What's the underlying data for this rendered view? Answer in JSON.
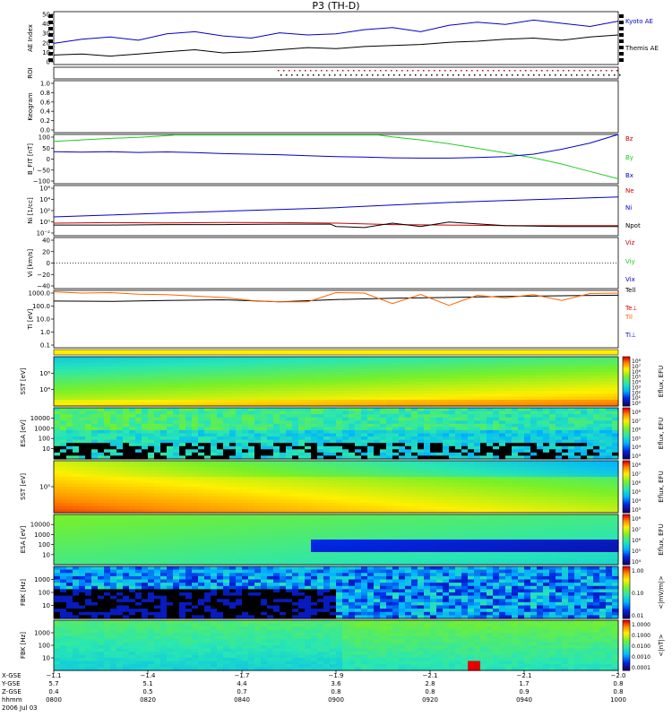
{
  "title": "P3 (TH-D)",
  "colors": {
    "black": "#000000",
    "blue": "#0000cc",
    "green": "#22cc22",
    "red": "#cc0000",
    "orange": "#ff6600",
    "dark": "#000033"
  },
  "chart_data": [
    {
      "type": "line",
      "name": "ae",
      "ylabel": "AE Index",
      "ylim": [
        0,
        50
      ],
      "ticks": [
        "50",
        "40",
        "30",
        "20",
        "10",
        "0"
      ],
      "series": [
        {
          "name": "Kyoto AE",
          "color": "blue",
          "x": [
            0,
            1,
            2,
            3,
            4,
            5,
            6,
            7,
            8,
            9,
            10,
            11,
            12,
            13,
            14,
            15,
            16,
            17,
            18,
            19,
            20
          ],
          "values": [
            20,
            24,
            26,
            23,
            29,
            31,
            27,
            25,
            30,
            28,
            29,
            33,
            35,
            31,
            37,
            40,
            38,
            42,
            39,
            36,
            41
          ]
        },
        {
          "name": "Themis AE",
          "color": "black",
          "x": [
            0,
            1,
            2,
            3,
            4,
            5,
            6,
            7,
            8,
            9,
            10,
            11,
            12,
            13,
            14,
            15,
            16,
            17,
            18,
            19,
            20
          ],
          "values": [
            9,
            10,
            8,
            10,
            12,
            14,
            11,
            12,
            14,
            16,
            15,
            17,
            18,
            19,
            21,
            22,
            24,
            25,
            23,
            26,
            28
          ]
        }
      ]
    },
    {
      "type": "roi",
      "name": "roi",
      "ylabel": "ROI"
    },
    {
      "type": "blank",
      "name": "keogram",
      "ylabel": "Keogram",
      "ylim": [
        0,
        1.0
      ],
      "ticks": [
        "1.0",
        "0.8",
        "0.6",
        "0.4",
        "0.2",
        "0.0"
      ]
    },
    {
      "type": "line",
      "name": "bfield",
      "ylabel": "B_FIT [nT]",
      "ylim": [
        -100,
        100
      ],
      "ticks": [
        "100",
        "50",
        "0",
        "−50",
        "−100"
      ],
      "series": [
        {
          "name": "Bz",
          "color": "red",
          "x": [],
          "values": []
        },
        {
          "name": "By",
          "color": "green",
          "x": [
            0,
            1,
            2,
            3,
            4,
            4.3,
            11.5,
            12,
            13,
            14,
            15,
            16,
            17,
            18,
            19,
            20
          ],
          "values": [
            72,
            78,
            84,
            88,
            95,
            98,
            98,
            90,
            78,
            62,
            44,
            25,
            5,
            -20,
            -50,
            -80
          ]
        },
        {
          "name": "Bx",
          "color": "blue",
          "x": [
            0,
            1,
            2,
            3,
            4,
            5,
            6,
            7,
            8,
            9,
            10,
            11,
            12,
            13,
            14,
            15,
            16,
            17,
            18,
            19,
            20
          ],
          "values": [
            30,
            28,
            30,
            27,
            29,
            26,
            22,
            20,
            18,
            14,
            10,
            8,
            5,
            4,
            4,
            6,
            10,
            20,
            40,
            65,
            100
          ]
        }
      ]
    },
    {
      "type": "line",
      "name": "density",
      "ylabel": "Ni [1/cc]",
      "log": true,
      "ylim": [
        0.01,
        1000000
      ],
      "ticks": [
        "10⁶",
        "10⁴",
        "10²",
        "10⁰",
        "10⁻²"
      ],
      "series": [
        {
          "name": "Ne",
          "color": "red",
          "x": [
            0,
            2,
            4,
            6,
            8,
            10,
            12,
            14,
            16,
            18,
            20
          ],
          "values": [
            1,
            1.2,
            1.1,
            1.3,
            1.2,
            1,
            0.6,
            0.5,
            0.4,
            0.4,
            0.4
          ]
        },
        {
          "name": "Ni",
          "color": "blue",
          "x": [
            0,
            2,
            4,
            6,
            8,
            10,
            12,
            14,
            16,
            18,
            20
          ],
          "values": [
            10,
            20,
            40,
            80,
            150,
            300,
            800,
            2000,
            4000,
            8000,
            15000
          ]
        },
        {
          "name": "Npot",
          "color": "black",
          "x": [
            0,
            2,
            4,
            6,
            8,
            9.8,
            10,
            11,
            12,
            13,
            14,
            16,
            18,
            20
          ],
          "values": [
            0.5,
            0.5,
            0.6,
            0.6,
            0.7,
            0.7,
            0.3,
            0.2,
            1,
            0.3,
            1.5,
            0.4,
            0.3,
            0.3
          ]
        }
      ]
    },
    {
      "type": "line",
      "name": "velocity",
      "ylabel": "Vi [km/s]",
      "ylim": [
        -50,
        50
      ],
      "ticks": [
        "40",
        "20",
        "0",
        "−20",
        "−40"
      ],
      "series": [
        {
          "name": "Viz",
          "color": "red",
          "x": [],
          "values": []
        },
        {
          "name": "Viy",
          "color": "green",
          "x": [],
          "values": []
        },
        {
          "name": "Vix",
          "color": "blue",
          "x": [],
          "values": []
        }
      ]
    },
    {
      "type": "line",
      "name": "temperature",
      "ylabel": "Ti [eV]",
      "log": true,
      "ylim": [
        0.1,
        1000
      ],
      "ticks": [
        "1000.0",
        "100.0",
        "10.0",
        "1.0",
        "0.1"
      ],
      "series": [
        {
          "name": "Tell",
          "color": "black",
          "x": [
            0,
            2,
            4,
            6,
            8,
            10,
            12,
            14,
            16,
            18,
            20
          ],
          "values": [
            180,
            170,
            200,
            220,
            160,
            230,
            280,
            320,
            380,
            420,
            460
          ]
        },
        {
          "name": "Te⊥",
          "color": "red",
          "x": [],
          "values": []
        },
        {
          "name": "Til",
          "color": "orange",
          "x": [
            0,
            1,
            2,
            3,
            4,
            5,
            6,
            7,
            8,
            9,
            10,
            11,
            12,
            13,
            14,
            15,
            16,
            17,
            18,
            19,
            20
          ],
          "values": [
            800,
            650,
            700,
            550,
            500,
            400,
            320,
            200,
            160,
            160,
            700,
            650,
            120,
            520,
            90,
            450,
            300,
            500,
            200,
            600,
            650
          ]
        },
        {
          "name": "Ti⊥",
          "color": "blue",
          "x": [],
          "values": []
        }
      ]
    },
    {
      "type": "heatmap",
      "name": "sst-omni",
      "ylabel": "SST [eV]",
      "yticks": [
        "10⁶",
        "10⁴"
      ],
      "cbar": [
        "10⁸",
        "10⁷",
        "10⁶",
        "10⁵",
        "10⁴",
        "10³",
        "10²",
        "10¹",
        "10⁰"
      ],
      "cbar_label": "Eflux, EFU"
    },
    {
      "type": "heatmap",
      "name": "esa-omni",
      "ylabel": "ESA [eV]",
      "yticks": [
        "10000",
        "1000",
        "100",
        "10"
      ],
      "cbar": [
        "10⁸",
        "10⁷",
        "10⁶",
        "10⁵",
        "10⁴",
        "10³"
      ],
      "cbar_label": "Eflux, EFU"
    },
    {
      "type": "heatmap",
      "name": "sst-e",
      "ylabel": "SST [eV]",
      "yticks": [
        "10⁵"
      ],
      "cbar": [
        "10⁸",
        "10⁷",
        "10⁶",
        "10⁵",
        "10⁴",
        "10³"
      ],
      "cbar_label": "Eflux, EFU"
    },
    {
      "type": "heatmap",
      "name": "esa-e",
      "ylabel": "ESA [eV]",
      "yticks": [
        "10000",
        "1000",
        "100",
        "10"
      ],
      "cbar": [
        "10⁸",
        "10⁷",
        "10⁶",
        "10⁵",
        "10⁴"
      ],
      "cbar_label": "Eflux, EFU"
    },
    {
      "type": "heatmap",
      "name": "fbk-edc",
      "ylabel": "FBK [Hz]",
      "yticks": [
        "1000",
        "100",
        "10"
      ],
      "cbar": [
        "1.00",
        "0.10",
        "0.01"
      ],
      "cbar_label": "<|mV/m|>"
    },
    {
      "type": "heatmap",
      "name": "fbk-scm",
      "ylabel": "FBK [Hz]",
      "yticks": [
        "1000",
        "100",
        "10"
      ],
      "cbar": [
        "1.0000",
        "0.1000",
        "0.0100",
        "0.0010",
        "0.0001"
      ],
      "cbar_label": "<|nT|>"
    }
  ],
  "xaxis": {
    "rows": [
      {
        "label": "X-GSE",
        "values": [
          "−1.1",
          "−1.4",
          "−1.7",
          "−1.9",
          "−2.1",
          "−2.1",
          "−2.0"
        ]
      },
      {
        "label": "Y-GSE",
        "values": [
          "5.7",
          "5.1",
          "4.4",
          "3.6",
          "2.8",
          "1.7",
          "0.8"
        ]
      },
      {
        "label": "Z-GSE",
        "values": [
          "0.4",
          "0.5",
          "0.7",
          "0.8",
          "0.8",
          "0.9",
          "0.8"
        ]
      },
      {
        "label": "hhmm",
        "values": [
          "0800",
          "0820",
          "0840",
          "0900",
          "0920",
          "0940",
          "1000"
        ]
      }
    ],
    "date": "2006 Jul 03"
  }
}
